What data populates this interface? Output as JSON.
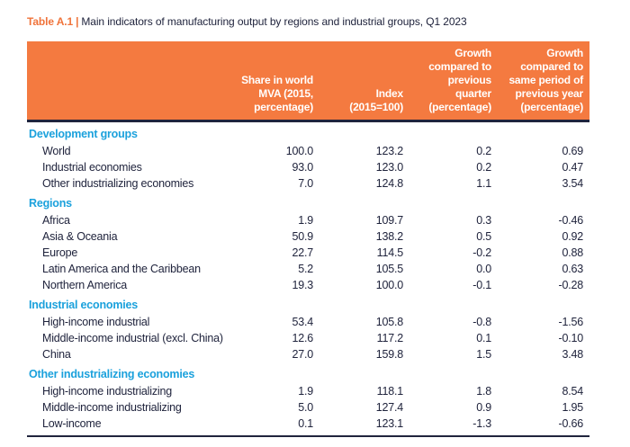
{
  "caption": {
    "number": "Table A.1",
    "separator": "|",
    "text": "Main indicators of manufacturing output by regions and industrial groups, Q1 2023"
  },
  "colors": {
    "header_orange": "#f47a40",
    "section_blue": "#1ba1dc",
    "text_navy": "#20243d",
    "header_text": "#ffffff"
  },
  "table": {
    "columns": [
      "",
      "Share in world\nMVA (2015,\npercentage)",
      "Index\n(2015=100)",
      "Growth\ncompared to\nprevious\nquarter\n(percentage)",
      "Growth\ncompared to\nsame period of\nprevious year\n(percentage)"
    ],
    "sections": [
      {
        "name": "Development groups",
        "rows": [
          {
            "label": "World",
            "values": [
              "100.0",
              "123.2",
              "0.2",
              "0.69"
            ]
          },
          {
            "label": "Industrial economies",
            "values": [
              "93.0",
              "123.0",
              "0.2",
              "0.47"
            ]
          },
          {
            "label": "Other industrializing economies",
            "values": [
              "7.0",
              "124.8",
              "1.1",
              "3.54"
            ]
          }
        ]
      },
      {
        "name": "Regions",
        "rows": [
          {
            "label": "Africa",
            "values": [
              "1.9",
              "109.7",
              "0.3",
              "-0.46"
            ]
          },
          {
            "label": "Asia & Oceania",
            "values": [
              "50.9",
              "138.2",
              "0.5",
              "0.92"
            ]
          },
          {
            "label": "Europe",
            "values": [
              "22.7",
              "114.5",
              "-0.2",
              "0.88"
            ]
          },
          {
            "label": "Latin America and the Caribbean",
            "values": [
              "5.2",
              "105.5",
              "0.0",
              "0.63"
            ]
          },
          {
            "label": "Northern America",
            "values": [
              "19.3",
              "100.0",
              "-0.1",
              "-0.28"
            ]
          }
        ]
      },
      {
        "name": "Industrial economies",
        "rows": [
          {
            "label": "High-income industrial",
            "values": [
              "53.4",
              "105.8",
              "-0.8",
              "-1.56"
            ]
          },
          {
            "label": "Middle-income industrial (excl. China)",
            "values": [
              "12.6",
              "117.2",
              "0.1",
              "-0.10"
            ]
          },
          {
            "label": "China",
            "values": [
              "27.0",
              "159.8",
              "1.5",
              "3.48"
            ]
          }
        ]
      },
      {
        "name": "Other industrializing economies",
        "rows": [
          {
            "label": "High-income industrializing",
            "values": [
              "1.9",
              "118.1",
              "1.8",
              "8.54"
            ]
          },
          {
            "label": "Middle-income industrializing",
            "values": [
              "5.0",
              "127.4",
              "0.9",
              "1.95"
            ]
          },
          {
            "label": "Low-income",
            "values": [
              "0.1",
              "123.1",
              "-1.3",
              "-0.66"
            ]
          }
        ]
      }
    ]
  }
}
